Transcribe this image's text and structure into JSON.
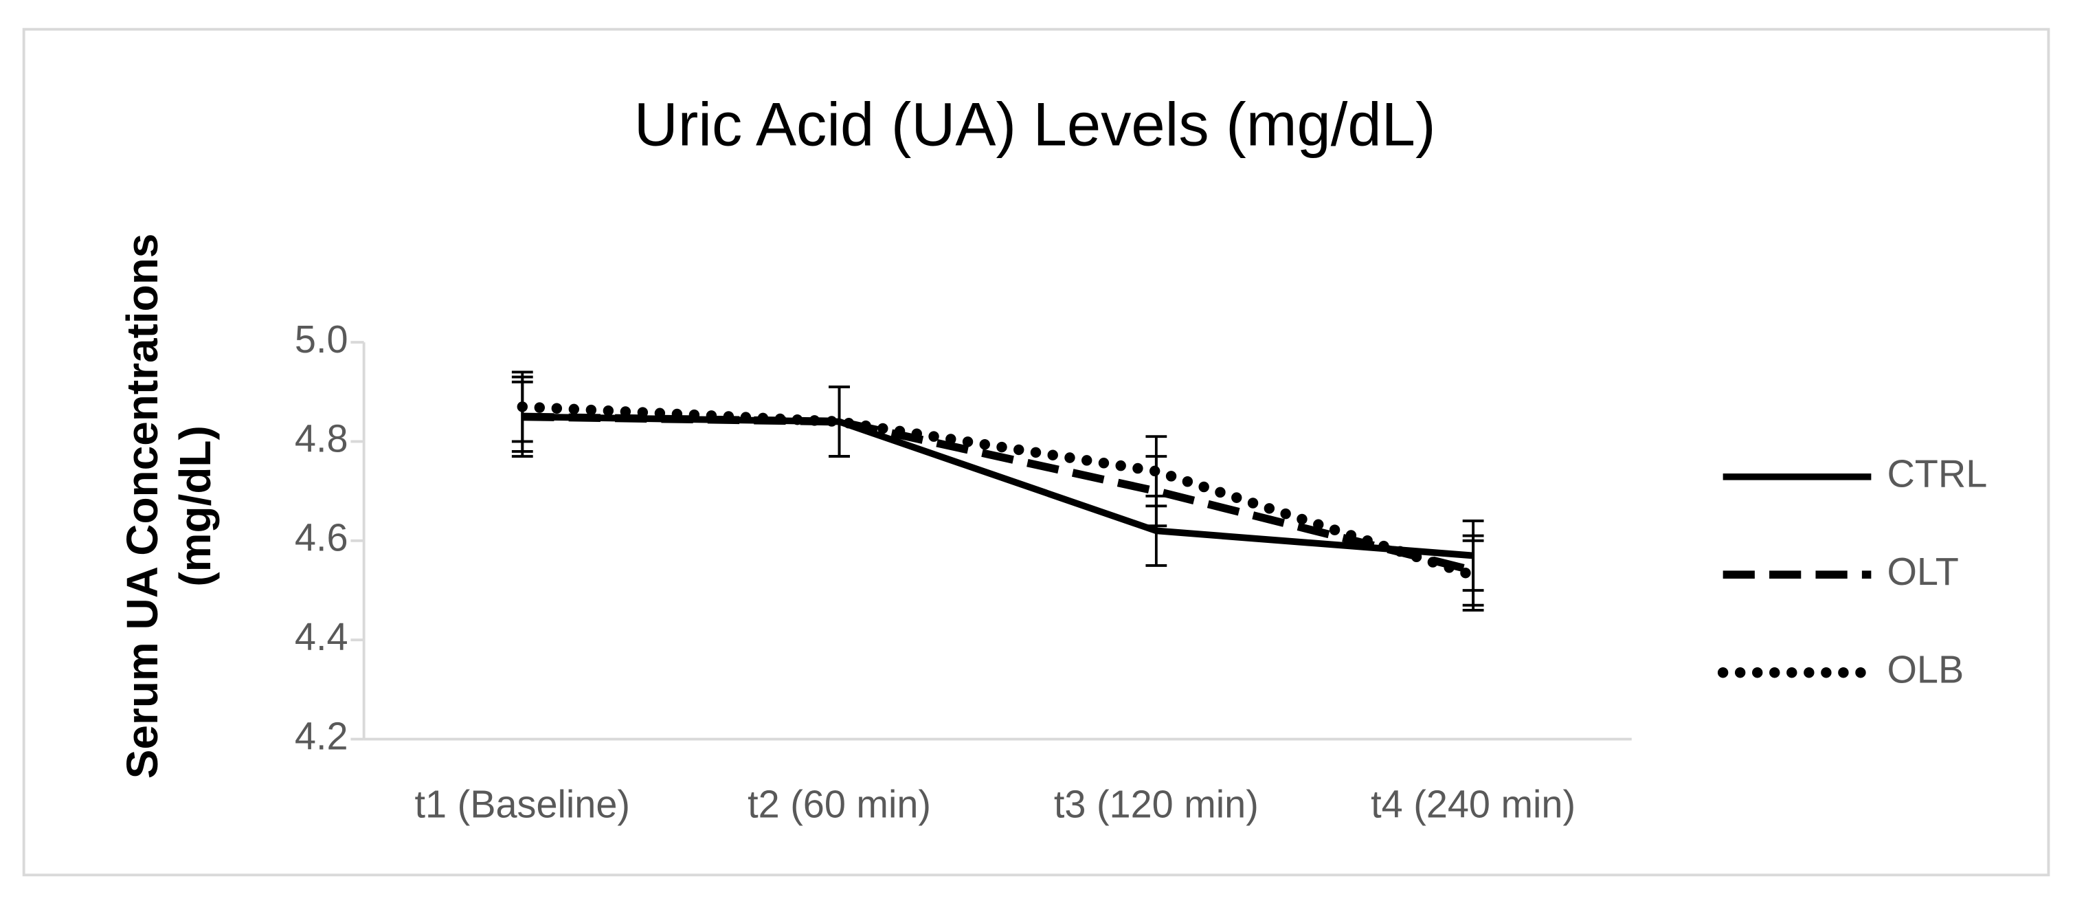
{
  "chart_data": {
    "type": "line",
    "title": "Uric Acid (UA) Levels (mg/dL)",
    "y_label": "Serum UA Concentrations (mg/dL)",
    "categories": [
      "t1 (Baseline)",
      "t2 (60 min)",
      "t3 (120 min)",
      "t4 (240 min)"
    ],
    "series": [
      {
        "name": "CTRL",
        "color": "#000000",
        "style": "solid",
        "values": [
          4.85,
          4.84,
          4.62,
          4.57
        ],
        "errors": [
          0.07,
          0.07,
          0.07,
          0.07
        ]
      },
      {
        "name": "OLT",
        "color": "#000000",
        "style": "dashed",
        "values": [
          4.85,
          4.84,
          4.7,
          4.54
        ],
        "errors": [
          0.08,
          0.07,
          0.07,
          0.07
        ]
      },
      {
        "name": "OLB",
        "color": "#000000",
        "style": "dotted",
        "values": [
          4.87,
          4.84,
          4.74,
          4.53
        ],
        "errors": [
          0.07,
          0.07,
          0.07,
          0.07
        ]
      }
    ],
    "ylim": [
      4.2,
      5.0
    ],
    "yticks": [
      4.2,
      4.4,
      4.6,
      4.8,
      {
        "value": 5.0,
        "label": "5.0"
      }
    ],
    "legend": "right",
    "grid": false
  }
}
